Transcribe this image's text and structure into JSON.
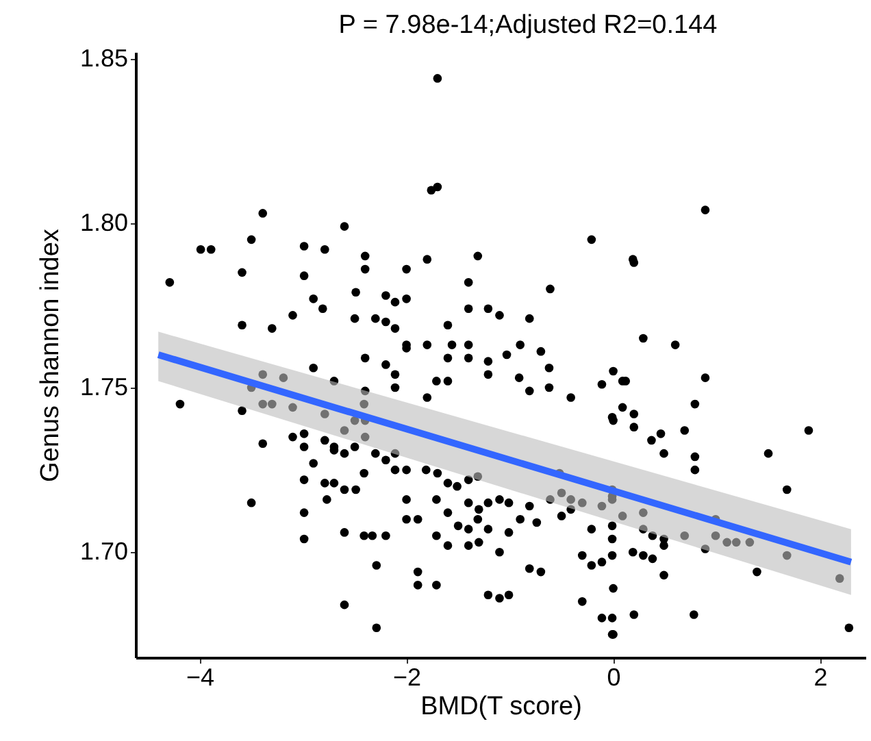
{
  "chart_data": {
    "type": "scatter",
    "title": "P = 7.98e-14;Adjusted R2=0.144",
    "xlabel": "BMD(T score)",
    "ylabel": "Genus shannon index",
    "xlim": [
      -4.62,
      2.44
    ],
    "ylim": [
      1.668,
      1.852
    ],
    "xticks": [
      -4,
      -2,
      0,
      2
    ],
    "yticks": [
      {
        "value": 1.7,
        "label": "1.70"
      },
      1.75,
      {
        "value": 1.8,
        "label": "1.80"
      },
      1.85
    ],
    "grid": false,
    "series": [
      {
        "marker": "circle",
        "color": "#000000",
        "x": [
          -1.7,
          -1.76,
          -1.7,
          0.89,
          -0.21,
          0.19,
          -4.29,
          -3.99,
          -3.89,
          -3.39,
          -3.5,
          -3.59,
          -2.99,
          -2.79,
          -2.99,
          -2.6,
          -2.9,
          -2.81,
          -2.49,
          -2.4,
          -2.4,
          -3.59,
          -3.3,
          -3.1,
          -2.5,
          -2.0,
          -1.8,
          -1.31,
          -1.4,
          -1.21,
          -1.4,
          -1.1,
          -0.61,
          -0.81,
          -1.4,
          -2.2,
          -2.11,
          -2.0,
          -2.3,
          -2.2,
          -2.11,
          -1.6,
          -1.8,
          -2.0,
          -1.56,
          -0.9,
          -0.7,
          0.2,
          0.29,
          0.6,
          -4.19,
          -3.59,
          -3.39,
          -3.5,
          -3.39,
          -3.3,
          -3.19,
          -3.39,
          -3.5,
          -3.1,
          -3.1,
          -2.99,
          -2.99,
          -2.99,
          -2.99,
          -2.99,
          -2.9,
          -2.79,
          -2.9,
          -2.79,
          -2.79,
          -2.77,
          -2.7,
          -2.7,
          -2.7,
          -2.6,
          -2.6,
          -2.6,
          -2.7,
          -2.5,
          -2.5,
          -2.49,
          -2.41,
          -2.6,
          -2.41,
          -2.6,
          -2.41,
          -2.4,
          -2.4,
          -2.2,
          -2.0,
          -2.11,
          -2.11,
          -1.6,
          -1.6,
          -1.8,
          -1.71,
          -1.4,
          -1.21,
          -1.03,
          -1.21,
          -0.91,
          -0.81,
          -0.62,
          -0.62,
          -0.41,
          -0.11,
          0.12,
          -0.01,
          -2.4,
          -2.4,
          -2.3,
          -2.2,
          -2.11,
          -2.11,
          -2.0,
          -1.81,
          -1.7,
          -2.0,
          -2.0,
          -1.89,
          -1.71,
          -1.6,
          -1.51,
          -1.6,
          -1.4,
          -1.4,
          -1.31,
          -1.3,
          -1.4,
          -1.31,
          -1.21,
          -1.21,
          -1.1,
          -1.01,
          -1.01,
          -1.1,
          -0.9,
          -0.81,
          -0.74,
          -0.61,
          -0.5,
          -0.5,
          -0.41,
          -0.52,
          -0.41,
          -0.3,
          -0.11,
          -0.21,
          -0.01,
          -0.01,
          -0.11,
          -0.01,
          -0.01,
          -0.81,
          -0.7,
          -1.21,
          -1.1,
          -1.01,
          -2.29,
          -1.89,
          -2.33,
          -2.2,
          -1.71,
          -1.6,
          -1.5,
          -1.4,
          -1.3,
          -2.29,
          -0.3,
          -0.3,
          -0.11,
          -0.01,
          -1.89,
          -1.71,
          -0.21,
          0.0,
          0.09,
          0.2,
          0.0,
          0.09,
          0.2,
          0.37,
          0.46,
          0.49,
          0.69,
          0.79,
          0.79,
          0.79,
          0.89,
          1.5,
          1.89,
          1.68,
          -0.01,
          -0.01,
          0.09,
          0.29,
          0.29,
          0.38,
          0.49,
          0.49,
          0.19,
          0.29,
          0.38,
          0.69,
          0.99,
          0.89,
          0.99,
          1.1,
          1.19,
          1.32,
          1.68,
          1.39,
          0.49,
          2.19,
          0.0,
          -0.01,
          0.2,
          0.78,
          2.28,
          0.0
        ],
        "values": [
          1.844,
          1.81,
          1.811,
          1.804,
          1.795,
          1.789,
          1.782,
          1.792,
          1.792,
          1.803,
          1.795,
          1.785,
          1.793,
          1.792,
          1.784,
          1.799,
          1.777,
          1.774,
          1.779,
          1.786,
          1.79,
          1.769,
          1.768,
          1.772,
          1.771,
          1.786,
          1.789,
          1.79,
          1.782,
          1.774,
          1.774,
          1.772,
          1.78,
          1.771,
          1.763,
          1.778,
          1.776,
          1.777,
          1.771,
          1.77,
          1.768,
          1.769,
          1.763,
          1.763,
          1.763,
          1.763,
          1.761,
          1.788,
          1.765,
          1.763,
          1.745,
          1.743,
          1.754,
          1.75,
          1.745,
          1.745,
          1.753,
          1.733,
          1.715,
          1.744,
          1.735,
          1.736,
          1.732,
          1.722,
          1.712,
          1.704,
          1.727,
          1.742,
          1.756,
          1.734,
          1.721,
          1.716,
          1.732,
          1.721,
          1.731,
          1.737,
          1.719,
          1.73,
          1.752,
          1.74,
          1.732,
          1.719,
          1.724,
          1.706,
          1.705,
          1.684,
          1.745,
          1.749,
          1.759,
          1.757,
          1.762,
          1.754,
          1.75,
          1.759,
          1.752,
          1.747,
          1.752,
          1.759,
          1.758,
          1.76,
          1.754,
          1.753,
          1.749,
          1.75,
          1.756,
          1.747,
          1.751,
          1.752,
          1.741,
          1.74,
          1.735,
          1.73,
          1.728,
          1.73,
          1.725,
          1.725,
          1.725,
          1.724,
          1.716,
          1.71,
          1.71,
          1.716,
          1.721,
          1.72,
          1.712,
          1.715,
          1.722,
          1.723,
          1.713,
          1.707,
          1.71,
          1.715,
          1.707,
          1.716,
          1.715,
          1.706,
          1.7,
          1.71,
          1.714,
          1.709,
          1.716,
          1.718,
          1.711,
          1.713,
          1.724,
          1.716,
          1.715,
          1.714,
          1.707,
          1.704,
          1.699,
          1.697,
          1.719,
          1.716,
          1.695,
          1.694,
          1.687,
          1.686,
          1.687,
          1.696,
          1.694,
          1.705,
          1.705,
          1.705,
          1.702,
          1.708,
          1.702,
          1.703,
          1.677,
          1.685,
          1.699,
          1.68,
          1.675,
          1.69,
          1.69,
          1.696,
          1.755,
          1.752,
          1.742,
          1.74,
          1.744,
          1.738,
          1.734,
          1.736,
          1.73,
          1.737,
          1.745,
          1.729,
          1.725,
          1.753,
          1.73,
          1.737,
          1.719,
          1.717,
          1.708,
          1.711,
          1.712,
          1.707,
          1.705,
          1.704,
          1.702,
          1.7,
          1.699,
          1.698,
          1.705,
          1.705,
          1.701,
          1.71,
          1.703,
          1.703,
          1.703,
          1.699,
          1.694,
          1.693,
          1.692,
          1.689,
          1.68,
          1.681,
          1.681,
          1.677,
          1.675
        ]
      },
      {
        "type": "line",
        "color": "#3366ff",
        "x": [
          -4.4,
          2.3
        ],
        "values": [
          1.76,
          1.697
        ],
        "lower": [
          1.752,
          1.687
        ],
        "upper": [
          1.767,
          1.707
        ]
      }
    ]
  }
}
